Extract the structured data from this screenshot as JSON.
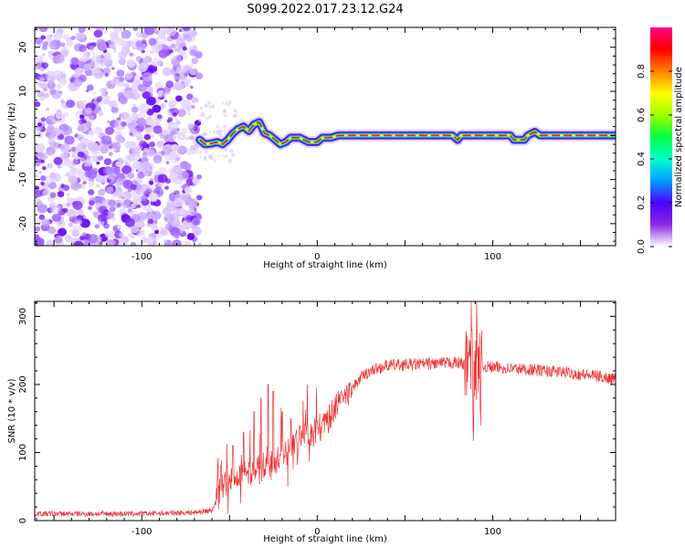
{
  "title": "S099.2022.017.23.12.G24",
  "chart_data": [
    {
      "type": "heatmap",
      "name": "spectrogram",
      "xlabel": "Height of straight line (km)",
      "ylabel": "Frequency (Hz)",
      "xlim": [
        -161,
        170
      ],
      "ylim": [
        -25,
        24.5
      ],
      "xticks": [
        -100,
        0,
        100
      ],
      "yticks": [
        -20,
        -10,
        0,
        10,
        20
      ],
      "noise_region_x": [
        -161,
        -67
      ],
      "ridge": [
        [
          -67,
          -1
        ],
        [
          -64,
          -2
        ],
        [
          -60,
          -1.8
        ],
        [
          -57,
          -1.5
        ],
        [
          -54,
          -2
        ],
        [
          -51,
          -1
        ],
        [
          -48,
          0.5
        ],
        [
          -45,
          1.5
        ],
        [
          -42,
          2
        ],
        [
          -39,
          1
        ],
        [
          -36,
          2.5
        ],
        [
          -33,
          3
        ],
        [
          -30,
          0.5
        ],
        [
          -27,
          0
        ],
        [
          -24,
          -1
        ],
        [
          -21,
          -2
        ],
        [
          -18,
          -1.5
        ],
        [
          -15,
          -0.5
        ],
        [
          -10,
          -0.5
        ],
        [
          -5,
          -1.5
        ],
        [
          0,
          -1.5
        ],
        [
          3,
          -0.5
        ],
        [
          8,
          -0.5
        ],
        [
          12,
          0
        ],
        [
          20,
          0
        ],
        [
          40,
          0
        ],
        [
          60,
          0
        ],
        [
          77,
          0
        ],
        [
          80,
          -1
        ],
        [
          82,
          0
        ],
        [
          100,
          0
        ],
        [
          110,
          0
        ],
        [
          112,
          -1
        ],
        [
          118,
          -1
        ],
        [
          120,
          0
        ],
        [
          124,
          0.8
        ],
        [
          127,
          0
        ],
        [
          140,
          0
        ],
        [
          160,
          0
        ],
        [
          170,
          0
        ]
      ],
      "colorbar": {
        "label": "Normalized spectral amplitude",
        "range": [
          0,
          1
        ],
        "ticks": [
          0.0,
          0.2,
          0.4,
          0.6,
          0.8
        ],
        "tick_labels": [
          "0.0",
          "0.2",
          "0.4",
          "0.6",
          "0.8"
        ],
        "colors": [
          "#ffffff",
          "#8a2be2",
          "#4a00ff",
          "#00a0ff",
          "#00ffd0",
          "#00ff40",
          "#a0ff00",
          "#ffff00",
          "#ff8000",
          "#ff0000",
          "#ff0080"
        ]
      }
    },
    {
      "type": "line",
      "name": "snr",
      "xlabel": "Height of straight line (km)",
      "ylabel": "SNR (10 * v/v)",
      "xlim": [
        -161,
        170
      ],
      "ylim": [
        0,
        322
      ],
      "xticks": [
        -100,
        0,
        100
      ],
      "yticks": [
        0,
        100,
        200,
        300
      ],
      "color": "#ee3333",
      "trend": [
        [
          -161,
          10
        ],
        [
          -100,
          10
        ],
        [
          -70,
          12
        ],
        [
          -60,
          15
        ],
        [
          -55,
          45
        ],
        [
          -50,
          60
        ],
        [
          -45,
          65
        ],
        [
          -40,
          70
        ],
        [
          -35,
          75
        ],
        [
          -30,
          80
        ],
        [
          -25,
          85
        ],
        [
          -20,
          95
        ],
        [
          -15,
          110
        ],
        [
          -10,
          118
        ],
        [
          -5,
          125
        ],
        [
          0,
          130
        ],
        [
          5,
          145
        ],
        [
          10,
          165
        ],
        [
          15,
          180
        ],
        [
          20,
          195
        ],
        [
          25,
          210
        ],
        [
          30,
          220
        ],
        [
          40,
          228
        ],
        [
          60,
          230
        ],
        [
          80,
          232
        ],
        [
          90,
          228
        ],
        [
          100,
          225
        ],
        [
          120,
          222
        ],
        [
          140,
          218
        ],
        [
          160,
          212
        ],
        [
          170,
          208
        ]
      ],
      "spikes": [
        [
          -55,
          80
        ],
        [
          -48,
          110
        ],
        [
          -42,
          130
        ],
        [
          -36,
          160
        ],
        [
          -32,
          180
        ],
        [
          -28,
          200
        ],
        [
          -25,
          190
        ],
        [
          -20,
          160
        ],
        [
          -15,
          150
        ],
        [
          -10,
          140
        ],
        [
          86,
          280
        ],
        [
          88,
          320
        ],
        [
          89,
          110
        ],
        [
          91,
          300
        ],
        [
          93,
          150
        ]
      ]
    }
  ]
}
